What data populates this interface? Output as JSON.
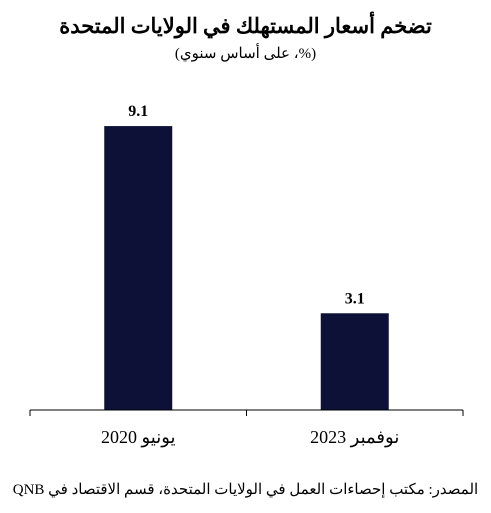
{
  "chart_data": {
    "type": "bar",
    "title": "تضخم أسعار المستهلك في الولايات المتحدة",
    "subtitle": "(%، على أساس سنوي)",
    "categories": [
      "يونيو 2020",
      "نوفمبر 2023"
    ],
    "values": [
      9.1,
      3.1
    ],
    "value_labels": [
      "9.1",
      "3.1"
    ],
    "ylim": [
      0,
      10
    ],
    "grid": false,
    "legend": "none",
    "bar_color": "#0d1137",
    "source": "المصدر: مكتب إحصاءات العمل في الولايات المتحدة، قسم الاقتصاد في QNB"
  }
}
